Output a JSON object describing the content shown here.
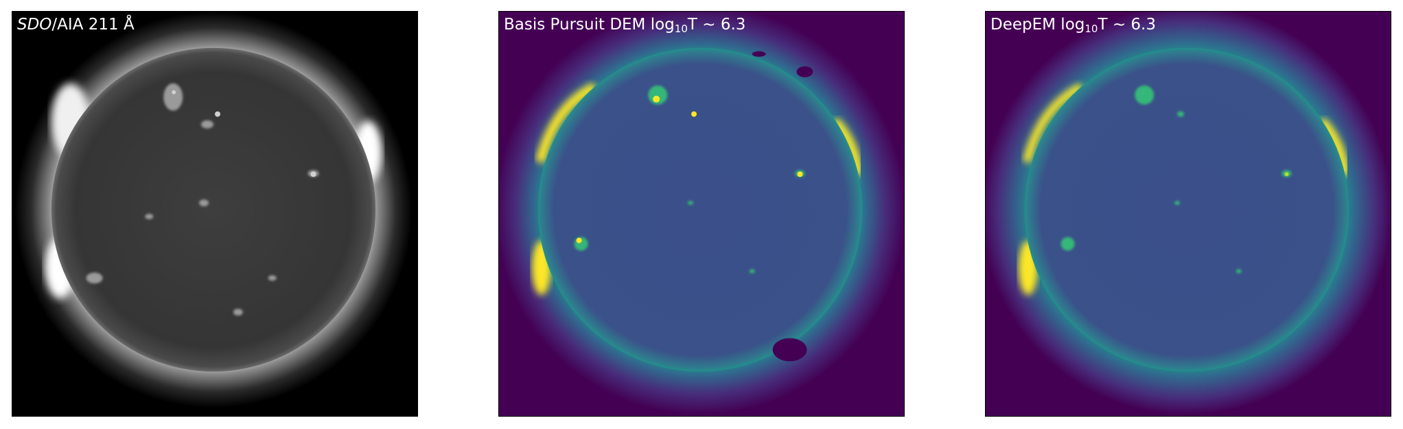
{
  "panels": [
    {
      "title_italic": "SDO",
      "title_rest": "/AIA 211 Å",
      "colormap": "grayscale"
    },
    {
      "title_prefix": "Basis Pursuit DEM log",
      "title_sub": "10",
      "title_suffix": "T ~ 6.3",
      "colormap": "viridis"
    },
    {
      "title_prefix": "DeepEM log",
      "title_sub": "10",
      "title_suffix": "T ~ 6.3",
      "colormap": "viridis"
    }
  ],
  "colors": {
    "viridis_dark": "#440154",
    "viridis_blue": "#31688e",
    "viridis_teal": "#21918c",
    "viridis_green": "#35b779",
    "viridis_yellow": "#fde725",
    "aia_black": "#000000",
    "aia_disk": "#3a3a3a"
  }
}
